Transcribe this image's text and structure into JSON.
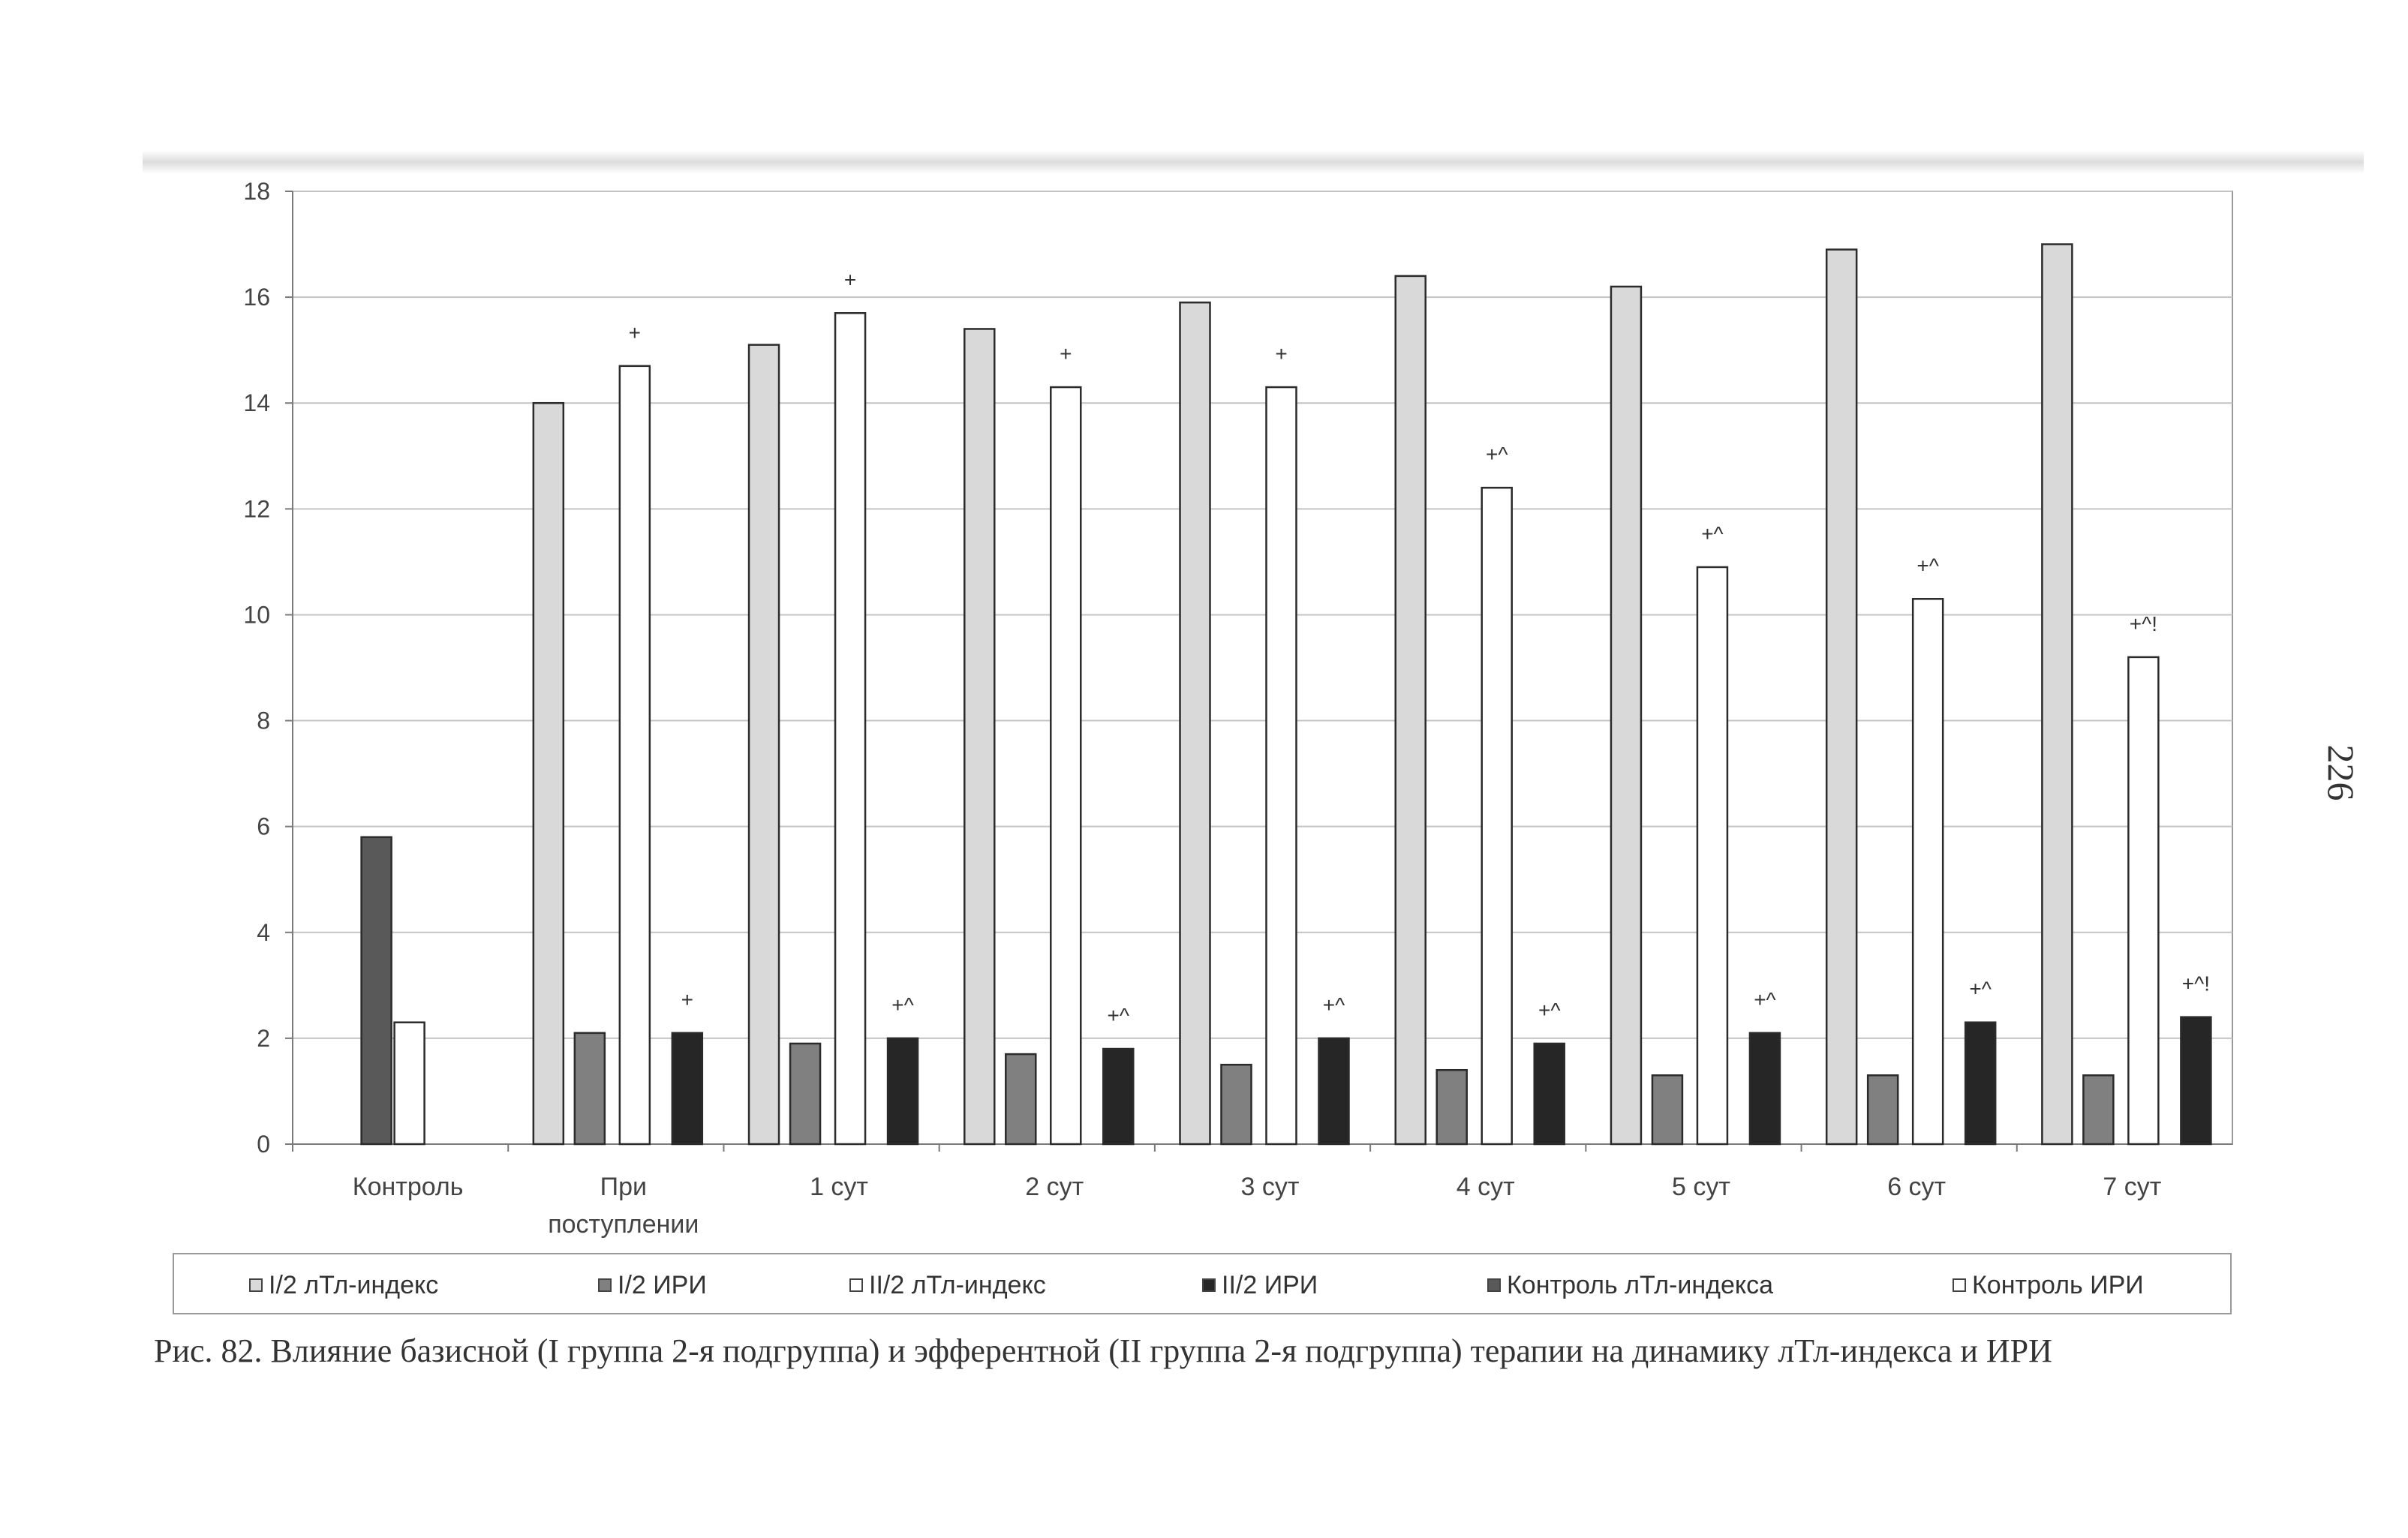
{
  "page": {
    "number": "226"
  },
  "caption": "Рис. 82. Влияние базисной (I группа 2-я подгруппа) и эфферентной (II группа 2-я подгруппа) терапии на динамику лТл-индекса и ИРИ",
  "colors": {
    "I2_index": "#d9d9d9",
    "I2_iri": "#808080",
    "II2_index": "#ffffff",
    "II2_iri": "#262626",
    "control_index": "#595959",
    "control_iri": "#ffffff"
  },
  "chart_data": {
    "type": "bar",
    "ylim": [
      0,
      18
    ],
    "yticks": [
      "0",
      "2",
      "4",
      "6",
      "8",
      "10",
      "12",
      "14",
      "16",
      "18"
    ],
    "grid": true,
    "legend_position": "bottom",
    "categories": [
      [
        "Контроль"
      ],
      [
        "При",
        "поступлении"
      ],
      [
        "1 сут"
      ],
      [
        "2 сут"
      ],
      [
        "3 сут"
      ],
      [
        "4 сут"
      ],
      [
        "5 сут"
      ],
      [
        "6 сут"
      ],
      [
        "7 сут"
      ]
    ],
    "series": [
      {
        "name": "I/2 лТл-индекс",
        "color": "#d9d9d9",
        "values": [
          null,
          14.0,
          15.1,
          15.4,
          15.9,
          16.4,
          16.2,
          16.9,
          17.0
        ],
        "marks": []
      },
      {
        "name": "I/2 ИРИ",
        "color": "#808080",
        "values": [
          null,
          2.1,
          1.9,
          1.7,
          1.5,
          1.4,
          1.3,
          1.3,
          1.3
        ],
        "marks": []
      },
      {
        "name": "II/2 лТл-индекс",
        "color": "#ffffff",
        "values": [
          null,
          14.7,
          15.7,
          14.3,
          14.3,
          12.4,
          10.9,
          10.3,
          9.2
        ],
        "marks": [
          "",
          "+",
          "+",
          "+",
          "+",
          "+^",
          "+^",
          "+^",
          "+^!"
        ]
      },
      {
        "name": "II/2 ИРИ",
        "color": "#262626",
        "values": [
          null,
          2.1,
          2.0,
          1.8,
          2.0,
          1.9,
          2.1,
          2.3,
          2.4
        ],
        "marks": [
          "",
          "+",
          "+^",
          "+^",
          "+^",
          "+^",
          "+^",
          "+^",
          "+^!"
        ]
      },
      {
        "name": "Контроль лТл-индекса",
        "color": "#595959",
        "values": [
          5.8,
          null,
          null,
          null,
          null,
          null,
          null,
          null,
          null
        ],
        "marks": []
      },
      {
        "name": "Контроль ИРИ",
        "color": "#ffffff",
        "values": [
          2.3,
          null,
          null,
          null,
          null,
          null,
          null,
          null,
          null
        ],
        "marks": []
      }
    ]
  }
}
